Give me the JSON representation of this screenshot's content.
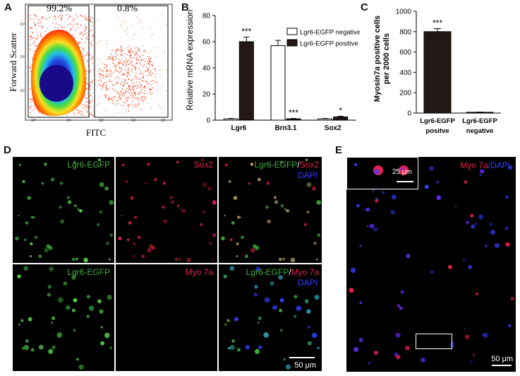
{
  "panels": {
    "A": "A",
    "B": "B",
    "C": "C",
    "D": "D",
    "E": "E"
  },
  "flow": {
    "pct_left": "99.2%",
    "pct_right": "0.8%",
    "xlabel": "FITC",
    "ylabel": "Forward Scatter",
    "x_ticks": [
      "10⁰",
      "10¹",
      "10²",
      "10³",
      "10⁴"
    ],
    "y_ticks": [
      "10¹",
      "10²",
      "10³"
    ]
  },
  "chart_data": [
    {
      "type": "bar",
      "panel": "B",
      "ylabel": "Relative mRNA expression",
      "categories": [
        "Lgr6",
        "Brn3.1",
        "Sox2"
      ],
      "series": [
        {
          "name": "Lgr6-EGFP negative",
          "values": [
            1,
            57,
            1
          ],
          "errors": [
            0.3,
            4,
            0.3
          ],
          "color": "#ffffff"
        },
        {
          "name": "Lgr6-EGFP positive",
          "values": [
            60,
            1,
            2.5
          ],
          "errors": [
            3.5,
            0.3,
            0.5
          ],
          "color": "#231815"
        }
      ],
      "annotations": [
        "***",
        "***",
        "*"
      ],
      "ylim": [
        0,
        80
      ],
      "yticks": [
        0,
        20,
        40,
        60,
        80
      ]
    },
    {
      "type": "bar",
      "panel": "C",
      "ylabel_line1": "Myosin7a positive cells",
      "ylabel_line2": "per 2000 cells",
      "categories": [
        [
          "Lgr6-EGFP",
          "positve"
        ],
        [
          "Lgr6-EGFP",
          "negative"
        ]
      ],
      "values": [
        800,
        8
      ],
      "errors": [
        30,
        2
      ],
      "annotations": [
        "***",
        ""
      ],
      "ylim": [
        0,
        1000
      ],
      "yticks": [
        0,
        200,
        400,
        600,
        800,
        1000
      ],
      "color": "#231815"
    }
  ],
  "micro": {
    "d_top_1": "Lgr6-EGFP",
    "d_top_2": "Sox2",
    "d_top_3a": "Lgr6-EGFP",
    "d_top_3b": "/",
    "d_top_3c": "Sox2",
    "d_top_3d": "DAPI",
    "d_bot_1": "Lgr6-EGFP",
    "d_bot_2": "Myo 7a",
    "d_bot_3a": "Lgr6-EGFP",
    "d_bot_3b": "/",
    "d_bot_3c": "Myo 7a",
    "d_bot_3d": "DAPI",
    "d_scale": "50 μm",
    "e_label_a": "Myo 7a",
    "e_label_b": "/DAPI",
    "e_inset_scale": "25 μm",
    "e_scale": "50 μm"
  },
  "colors": {
    "green": "#3fae3a",
    "red": "#e8204a",
    "blue": "#3340ff",
    "dark_bar": "#231815"
  }
}
